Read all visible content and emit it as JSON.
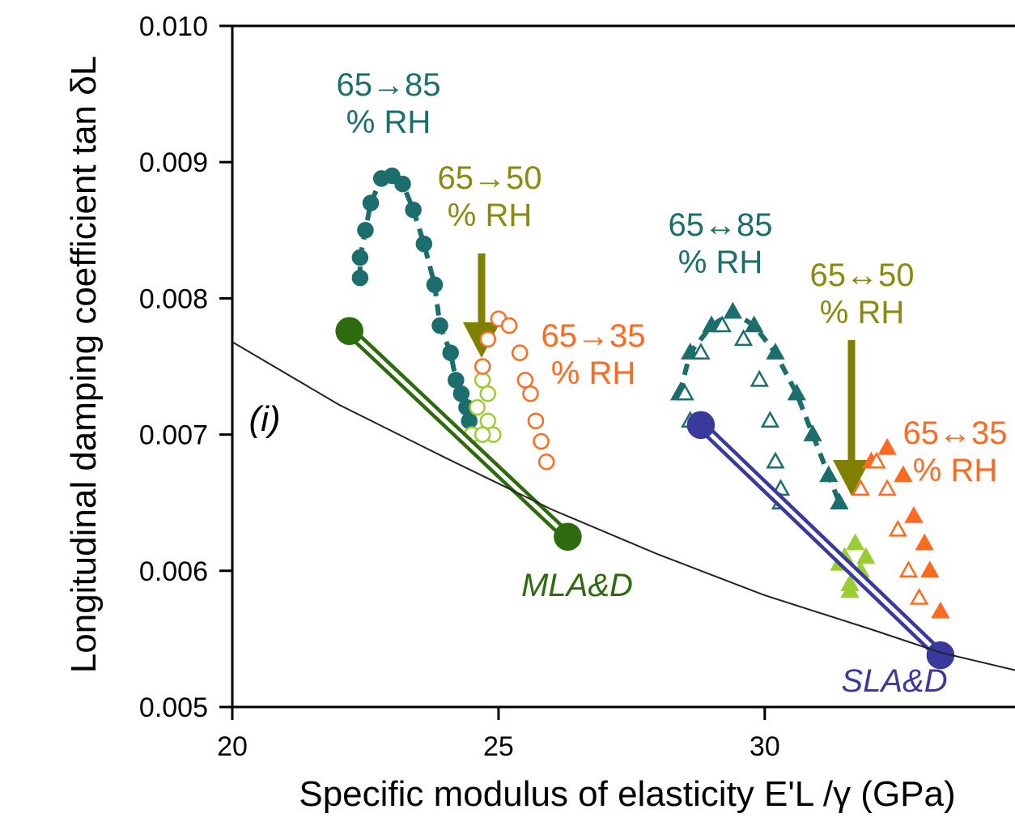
{
  "chart_data": {
    "type": "scatter",
    "xlabel": "Specific modulus of elasticity E'L /γ (GPa)",
    "ylabel": "Longitudinal damping coefficient tan δL",
    "xlim": [
      20,
      34.7
    ],
    "ylim": [
      0.005,
      0.01
    ],
    "xticks": [
      20,
      25,
      30
    ],
    "yticks": [
      0.005,
      0.006,
      0.007,
      0.008,
      0.009,
      {
        "value": 0.01,
        "label": "0.010"
      }
    ],
    "annotations": [
      "(i)"
    ],
    "series": [
      {
        "name": "65→85 % RH",
        "color": "#1b6e6b",
        "marker": "circle",
        "filled": true,
        "line": "dashed",
        "x": [
          22.4,
          22.4,
          22.5,
          22.6,
          22.8,
          23.0,
          23.2,
          23.4,
          23.6,
          23.8,
          23.9,
          24.1,
          24.2,
          24.3,
          24.4,
          24.45
        ],
        "values": [
          0.00815,
          0.0083,
          0.0085,
          0.0087,
          0.00888,
          0.0089,
          0.00884,
          0.00865,
          0.0084,
          0.0081,
          0.0078,
          0.0076,
          0.0074,
          0.0073,
          0.0072,
          0.0071
        ]
      },
      {
        "name": "65→50 % RH",
        "color": "#9acd32",
        "label_color": "#8a8a10",
        "marker": "circle",
        "filled": false,
        "x": [
          24.5,
          24.6,
          24.7,
          24.8,
          24.8,
          24.9,
          24.7
        ],
        "values": [
          0.007,
          0.0072,
          0.0074,
          0.0073,
          0.0071,
          0.007,
          0.007
        ]
      },
      {
        "name": "65→35 % RH",
        "color": "#ff6a21",
        "marker": "circle",
        "filled": false,
        "x": [
          24.7,
          24.8,
          25.0,
          25.2,
          25.4,
          25.5,
          25.6,
          25.7,
          25.8,
          25.9
        ],
        "values": [
          0.0075,
          0.0077,
          0.00785,
          0.0078,
          0.0076,
          0.0074,
          0.0073,
          0.0071,
          0.00695,
          0.0068
        ]
      },
      {
        "name": "MLA&D",
        "color": "#2e6b0e",
        "marker": "endpoints",
        "line": "double",
        "x": [
          22.2,
          26.3
        ],
        "values": [
          0.00776,
          0.00625
        ]
      },
      {
        "name": "65↔85 % RH",
        "color": "#1b6e6b",
        "marker": "triangle",
        "filled": true,
        "line": "dashed",
        "x": [
          28.4,
          28.6,
          29.0,
          29.4,
          29.8,
          30.2,
          30.6,
          30.9,
          31.2,
          31.4
        ],
        "values": [
          0.0073,
          0.0076,
          0.0078,
          0.0079,
          0.0078,
          0.0076,
          0.0073,
          0.007,
          0.0067,
          0.0065
        ]
      },
      {
        "color": "#1b6e6b",
        "marker": "triangle",
        "filled": false,
        "x": [
          28.6,
          28.5,
          28.8,
          29.2,
          29.6,
          29.9,
          30.1,
          30.2,
          30.3,
          30.3
        ],
        "values": [
          0.0071,
          0.0073,
          0.0076,
          0.0078,
          0.0077,
          0.0074,
          0.0071,
          0.0068,
          0.0066,
          0.0065
        ]
      },
      {
        "name": "65↔50 % RH",
        "color": "#9acd32",
        "label_color": "#8a8a10",
        "marker": "triangle",
        "filled": true,
        "x": [
          31.5,
          31.6,
          31.8,
          31.7,
          31.4,
          31.9,
          31.6
        ],
        "values": [
          0.0061,
          0.0059,
          0.006,
          0.0062,
          0.00605,
          0.0061,
          0.00585
        ]
      },
      {
        "name": "65↔35 % RH",
        "color": "#ff6a21",
        "marker": "triangle",
        "filled": true,
        "x": [
          32.0,
          32.3,
          32.6,
          32.8,
          33.0,
          33.1,
          33.3
        ],
        "values": [
          0.0068,
          0.0069,
          0.0067,
          0.0064,
          0.0062,
          0.006,
          0.0057
        ]
      },
      {
        "color": "#ff6a21",
        "marker": "triangle",
        "filled": false,
        "x": [
          31.8,
          32.1,
          32.3,
          32.5,
          32.7,
          32.9
        ],
        "values": [
          0.0066,
          0.0068,
          0.0066,
          0.0063,
          0.006,
          0.0058
        ]
      },
      {
        "name": "SLA&D",
        "color": "#3a3a9e",
        "marker": "endpoints",
        "line": "double",
        "x": [
          28.8,
          33.3
        ],
        "values": [
          0.00707,
          0.00538
        ]
      },
      {
        "color": "#222222",
        "marker": "none",
        "line": "solid",
        "x": [
          20,
          22,
          24,
          26,
          28,
          30,
          32,
          33.3,
          34.7
        ],
        "values": [
          0.00768,
          0.00722,
          0.00683,
          0.00645,
          0.00612,
          0.00582,
          0.00557,
          0.0054,
          0.00527
        ]
      }
    ]
  }
}
